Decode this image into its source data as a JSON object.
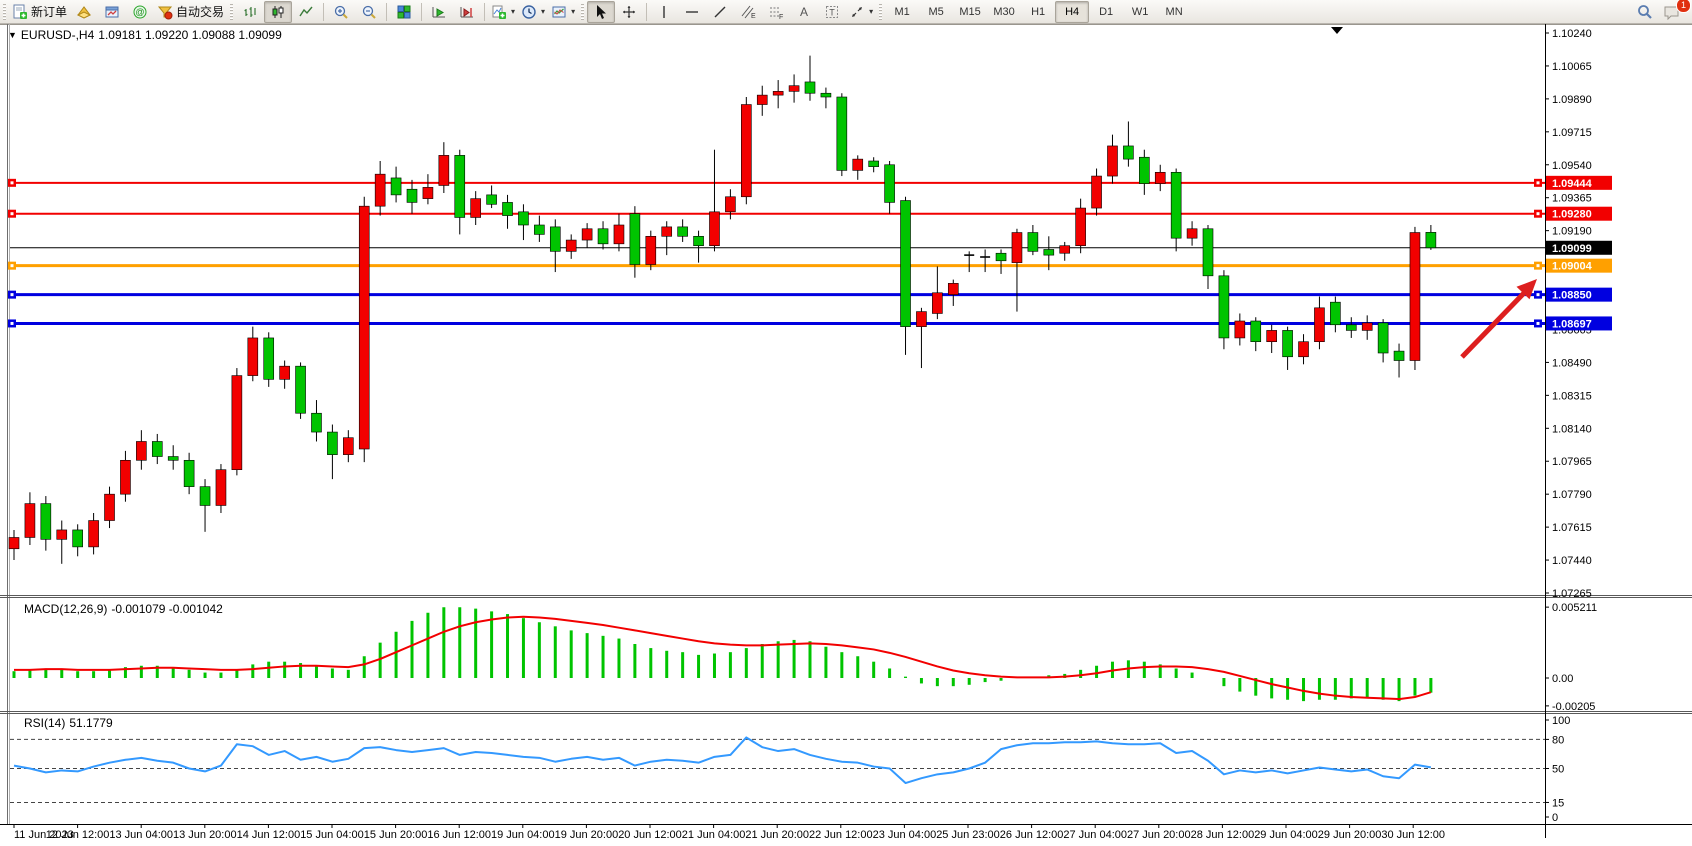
{
  "toolbar": {
    "new_order_label": "新订单",
    "autotrade_label": "自动交易",
    "timeframes": [
      "M1",
      "M5",
      "M15",
      "M30",
      "H1",
      "H4",
      "D1",
      "W1",
      "MN"
    ],
    "active_timeframe": "H4",
    "chat_badge": "1",
    "icons": [
      "new-order-icon",
      "history-icon",
      "chart-window-icon",
      "community-icon",
      "autotrade-icon",
      "bar-chart-icon",
      "candle-chart-icon",
      "line-chart-icon",
      "zoom-in-icon",
      "zoom-out-icon",
      "tile-windows-icon",
      "auto-scroll-icon",
      "chart-shift-icon",
      "indicators-icon",
      "periods-icon",
      "templates-icon",
      "cursor-icon",
      "crosshair-icon",
      "vertical-line-icon",
      "horizontal-line-icon",
      "trendline-icon",
      "channel-icon",
      "fibonacci-icon",
      "text-icon",
      "text-label-icon",
      "arrows-icon",
      "search-icon",
      "chat-icon"
    ]
  },
  "chart": {
    "title_symbol": "EURUSD-,H4",
    "title_quote": "1.09181 1.09220 1.09088 1.09099",
    "colors": {
      "up": "#f20000",
      "down": "#00c400",
      "wick": "#000000",
      "red_line": "#f20000",
      "orange_line": "#ffa000",
      "blue_line": "#0000e0",
      "current_line": "#000000",
      "macd_hist": "#00c400",
      "macd_signal": "#f20000",
      "rsi_line": "#3399ff",
      "arrow": "#dd1f1f"
    },
    "hlines": [
      {
        "price": 1.09444,
        "color": "#f20000",
        "width": 2,
        "handles": true,
        "tag_bg": "#f20000"
      },
      {
        "price": 1.0928,
        "color": "#f20000",
        "width": 2,
        "handles": true,
        "tag_bg": "#f20000"
      },
      {
        "price": 1.09099,
        "color": "#000000",
        "width": 1,
        "handles": false,
        "tag_bg": "#000000"
      },
      {
        "price": 1.09004,
        "color": "#ffa000",
        "width": 3,
        "handles": true,
        "tag_bg": "#ffa000"
      },
      {
        "price": 1.0885,
        "color": "#0000e0",
        "width": 3,
        "handles": true,
        "tag_bg": "#0000e0"
      },
      {
        "price": 1.08697,
        "color": "#0000e0",
        "width": 3,
        "handles": true,
        "tag_bg": "#0000e0"
      }
    ],
    "price_ticks": [
      1.1024,
      1.10065,
      1.0989,
      1.09715,
      1.0954,
      1.09365,
      1.0919,
      1.08665,
      1.0849,
      1.08315,
      1.0814,
      1.07965,
      1.0779,
      1.07615,
      1.0744,
      1.07265
    ],
    "candles": [
      [
        1.075,
        1.076,
        1.0744,
        1.0756
      ],
      [
        1.0756,
        1.078,
        1.0752,
        1.0774
      ],
      [
        1.0774,
        1.0778,
        1.0749,
        1.0755
      ],
      [
        1.0755,
        1.0765,
        1.0742,
        1.076
      ],
      [
        1.076,
        1.0763,
        1.0746,
        1.0751
      ],
      [
        1.0751,
        1.0769,
        1.0747,
        1.0765
      ],
      [
        1.0765,
        1.0783,
        1.0761,
        1.0779
      ],
      [
        1.0779,
        1.0802,
        1.0775,
        1.0797
      ],
      [
        1.0797,
        1.0813,
        1.0792,
        1.0807
      ],
      [
        1.0807,
        1.0811,
        1.0795,
        1.0799
      ],
      [
        1.0799,
        1.0805,
        1.0792,
        1.0797
      ],
      [
        1.0797,
        1.0801,
        1.0779,
        1.0783
      ],
      [
        1.0783,
        1.0787,
        1.0759,
        1.0773
      ],
      [
        1.0773,
        1.0795,
        1.0769,
        1.0792
      ],
      [
        1.0792,
        1.0846,
        1.0789,
        1.0842
      ],
      [
        1.0842,
        1.0868,
        1.0839,
        1.0862
      ],
      [
        1.0862,
        1.0865,
        1.0836,
        1.084
      ],
      [
        1.084,
        1.085,
        1.0835,
        1.0847
      ],
      [
        1.0847,
        1.0849,
        1.0819,
        1.0822
      ],
      [
        1.0822,
        1.0829,
        1.0807,
        1.0812
      ],
      [
        1.0812,
        1.0816,
        1.0787,
        1.08
      ],
      [
        1.08,
        1.0813,
        1.0796,
        1.0809
      ],
      [
        1.0803,
        1.0937,
        1.0796,
        1.0932
      ],
      [
        1.0932,
        1.0956,
        1.0927,
        1.0949
      ],
      [
        1.0947,
        1.0953,
        1.0934,
        1.0938
      ],
      [
        1.0941,
        1.0946,
        1.0928,
        1.0934
      ],
      [
        1.0936,
        1.0949,
        1.0933,
        1.0942
      ],
      [
        1.0943,
        1.0966,
        1.0939,
        1.0959
      ],
      [
        1.0959,
        1.0962,
        1.0917,
        1.0926
      ],
      [
        1.0926,
        1.094,
        1.0922,
        1.0936
      ],
      [
        1.0938,
        1.0943,
        1.0931,
        1.0933
      ],
      [
        1.0934,
        1.0938,
        1.092,
        1.0927
      ],
      [
        1.0929,
        1.0933,
        1.0914,
        1.0922
      ],
      [
        1.0922,
        1.0927,
        1.0913,
        1.0917
      ],
      [
        1.0921,
        1.0925,
        1.0897,
        1.0908
      ],
      [
        1.0908,
        1.0917,
        1.0904,
        1.0914
      ],
      [
        1.0914,
        1.0923,
        1.091,
        1.092
      ],
      [
        1.092,
        1.0924,
        1.0909,
        1.0912
      ],
      [
        1.0912,
        1.0928,
        1.0908,
        1.0922
      ],
      [
        1.0928,
        1.0932,
        1.0894,
        1.0901
      ],
      [
        1.0901,
        1.0919,
        1.0898,
        1.0916
      ],
      [
        1.0916,
        1.0924,
        1.0906,
        1.0921
      ],
      [
        1.0921,
        1.0925,
        1.0913,
        1.0916
      ],
      [
        1.0916,
        1.0919,
        1.0902,
        1.0911
      ],
      [
        1.0911,
        1.0962,
        1.0908,
        1.0929
      ],
      [
        1.0929,
        1.0941,
        1.0925,
        1.0937
      ],
      [
        1.0937,
        1.099,
        1.0933,
        1.0986
      ],
      [
        1.0986,
        1.0996,
        1.098,
        1.0991
      ],
      [
        1.0991,
        1.0999,
        1.0984,
        1.0993
      ],
      [
        1.0993,
        1.1002,
        1.0987,
        1.0996
      ],
      [
        1.0998,
        1.1012,
        1.0988,
        1.0992
      ],
      [
        1.0992,
        1.0995,
        1.0984,
        1.099
      ],
      [
        1.099,
        1.0992,
        1.0948,
        1.0951
      ],
      [
        1.0951,
        1.0959,
        1.0946,
        1.0957
      ],
      [
        1.0956,
        1.0958,
        1.095,
        1.0953
      ],
      [
        1.0954,
        1.0956,
        1.0928,
        1.0934
      ],
      [
        1.0935,
        1.0937,
        1.0853,
        1.0868
      ],
      [
        1.0868,
        1.0878,
        1.0846,
        1.0876
      ],
      [
        1.0875,
        1.09,
        1.0872,
        1.0886
      ],
      [
        1.0885,
        1.0893,
        1.0879,
        1.0891
      ],
      [
        1.0906,
        1.0908,
        1.0897,
        1.0906
      ],
      [
        1.0905,
        1.0909,
        1.0897,
        1.0905
      ],
      [
        1.0907,
        1.0909,
        1.0896,
        1.0903
      ],
      [
        1.0902,
        1.092,
        1.0876,
        1.0918
      ],
      [
        1.0918,
        1.0922,
        1.0906,
        1.0908
      ],
      [
        1.0909,
        1.0916,
        1.0898,
        1.0906
      ],
      [
        1.0907,
        1.0913,
        1.0903,
        1.0911
      ],
      [
        1.0911,
        1.0936,
        1.0907,
        1.0931
      ],
      [
        1.0931,
        1.0952,
        1.0927,
        1.0948
      ],
      [
        1.0948,
        1.097,
        1.0944,
        1.0964
      ],
      [
        1.0964,
        1.0977,
        1.0953,
        1.0957
      ],
      [
        1.0958,
        1.0962,
        1.0938,
        1.0944
      ],
      [
        1.0944,
        1.0954,
        1.094,
        1.095
      ],
      [
        1.095,
        1.0952,
        1.0908,
        1.0915
      ],
      [
        1.0915,
        1.0924,
        1.0911,
        1.092
      ],
      [
        1.092,
        1.0922,
        1.0888,
        1.0895
      ],
      [
        1.0895,
        1.0898,
        1.0856,
        1.0862
      ],
      [
        1.0862,
        1.0875,
        1.0858,
        1.0871
      ],
      [
        1.0871,
        1.0873,
        1.0855,
        1.086
      ],
      [
        1.086,
        1.0869,
        1.0854,
        1.0866
      ],
      [
        1.0866,
        1.0868,
        1.0845,
        1.0852
      ],
      [
        1.0852,
        1.0864,
        1.0848,
        1.086
      ],
      [
        1.086,
        1.0884,
        1.0856,
        1.0878
      ],
      [
        1.0881,
        1.0884,
        1.0865,
        1.0869
      ],
      [
        1.0869,
        1.0873,
        1.0862,
        1.0866
      ],
      [
        1.0866,
        1.0874,
        1.0861,
        1.087
      ],
      [
        1.087,
        1.0872,
        1.0849,
        1.0854
      ],
      [
        1.0855,
        1.0859,
        1.0841,
        1.085
      ],
      [
        1.085,
        1.0921,
        1.0845,
        1.0918
      ],
      [
        1.09181,
        1.0922,
        1.09088,
        1.09099
      ]
    ]
  },
  "macd": {
    "label": "MACD(12,26,9)",
    "values_text": "-0.001079 -0.001042",
    "axis_ticks": [
      {
        "v": 0.005211,
        "label": "0.005211"
      },
      {
        "v": 0,
        "label": "0.00"
      },
      {
        "v": -0.00205,
        "label": "-0.00205"
      }
    ],
    "hist": [
      0.0005,
      0.0006,
      0.0007,
      0.0006,
      0.0005,
      0.0005,
      0.0006,
      0.0008,
      0.0009,
      0.0009,
      0.0008,
      0.0006,
      0.0004,
      0.0004,
      0.0006,
      0.001,
      0.0012,
      0.0012,
      0.0011,
      0.0009,
      0.0007,
      0.0006,
      0.0016,
      0.0026,
      0.0034,
      0.0042,
      0.0048,
      0.0052,
      0.0052,
      0.0051,
      0.0049,
      0.0047,
      0.0044,
      0.0041,
      0.0038,
      0.0035,
      0.0033,
      0.0031,
      0.0029,
      0.0025,
      0.0022,
      0.002,
      0.0019,
      0.0017,
      0.0018,
      0.0019,
      0.0022,
      0.0025,
      0.0027,
      0.0028,
      0.0027,
      0.0023,
      0.0019,
      0.0016,
      0.0012,
      0.0007,
      0.0001,
      -0.0004,
      -0.0006,
      -0.0006,
      -0.0005,
      -0.0003,
      -0.0002,
      0.0,
      0.0001,
      0.0002,
      0.0003,
      0.0006,
      0.0009,
      0.0012,
      0.0013,
      0.0012,
      0.001,
      0.0007,
      0.0004,
      0.0,
      -0.0006,
      -0.001,
      -0.0013,
      -0.0015,
      -0.0016,
      -0.0017,
      -0.0016,
      -0.0016,
      -0.0015,
      -0.0015,
      -0.0016,
      -0.0017,
      -0.0013,
      -0.001079
    ],
    "signal": [
      0.0006,
      0.0006,
      0.00065,
      0.00065,
      0.0006,
      0.0006,
      0.0006,
      0.00065,
      0.0007,
      0.00075,
      0.00075,
      0.0007,
      0.00065,
      0.0006,
      0.0006,
      0.00065,
      0.00075,
      0.00085,
      0.0009,
      0.0009,
      0.00085,
      0.0008,
      0.001,
      0.0014,
      0.0019,
      0.0024,
      0.0029,
      0.0034,
      0.0038,
      0.0041,
      0.0043,
      0.00445,
      0.0045,
      0.00445,
      0.00435,
      0.0042,
      0.00405,
      0.0039,
      0.0037,
      0.0035,
      0.0033,
      0.0031,
      0.0029,
      0.0027,
      0.00255,
      0.00245,
      0.0024,
      0.0024,
      0.00245,
      0.0025,
      0.00255,
      0.0025,
      0.0024,
      0.00225,
      0.0021,
      0.00185,
      0.00155,
      0.0012,
      0.00085,
      0.00055,
      0.00035,
      0.0002,
      0.0001,
      5e-05,
      5e-05,
      5e-05,
      0.0001,
      0.0002,
      0.00035,
      0.00055,
      0.0007,
      0.0008,
      0.00085,
      0.00085,
      0.0008,
      0.00065,
      0.00045,
      0.00015,
      -0.00015,
      -0.00045,
      -0.0007,
      -0.00095,
      -0.00115,
      -0.0013,
      -0.0014,
      -0.00145,
      -0.0015,
      -0.00155,
      -0.0014,
      -0.001042
    ]
  },
  "rsi": {
    "label": "RSI(14)",
    "value_text": "51.1779",
    "levels": [
      80,
      50,
      15
    ],
    "axis_ticks": [
      {
        "v": 100,
        "label": "100"
      },
      {
        "v": 80,
        "label": "80"
      },
      {
        "v": 50,
        "label": "50"
      },
      {
        "v": 15,
        "label": "15"
      },
      {
        "v": 0,
        "label": "0"
      }
    ],
    "series": [
      53,
      50,
      46,
      48,
      47,
      52,
      56,
      59,
      61,
      58,
      56,
      50,
      47,
      53,
      75,
      73,
      64,
      68,
      59,
      62,
      57,
      60,
      71,
      72,
      69,
      67,
      69,
      71,
      64,
      67,
      66,
      64,
      62,
      61,
      57,
      60,
      62,
      59,
      61,
      53,
      57,
      59,
      58,
      56,
      62,
      64,
      82,
      72,
      68,
      70,
      64,
      60,
      57,
      56,
      52,
      50,
      35,
      40,
      44,
      46,
      50,
      56,
      70,
      74,
      76,
      76,
      77,
      77,
      78,
      76,
      75,
      75,
      76,
      66,
      68,
      58,
      44,
      48,
      46,
      48,
      45,
      48,
      51,
      49,
      47,
      49,
      42,
      40,
      54,
      51.18
    ]
  },
  "time_axis": {
    "labels": [
      "11 Jun 2023",
      "12 Jun 12:00",
      "13 Jun 04:00",
      "13 Jun 20:00",
      "14 Jun 12:00",
      "15 Jun 04:00",
      "15 Jun 20:00",
      "16 Jun 12:00",
      "19 Jun 04:00",
      "19 Jun 20:00",
      "20 Jun 12:00",
      "21 Jun 04:00",
      "21 Jun 20:00",
      "22 Jun 12:00",
      "23 Jun 04:00",
      "25 Jun 23:00",
      "26 Jun 12:00",
      "27 Jun 04:00",
      "27 Jun 20:00",
      "28 Jun 12:00",
      "29 Jun 04:00",
      "29 Jun 20:00",
      "30 Jun 12:00"
    ]
  }
}
